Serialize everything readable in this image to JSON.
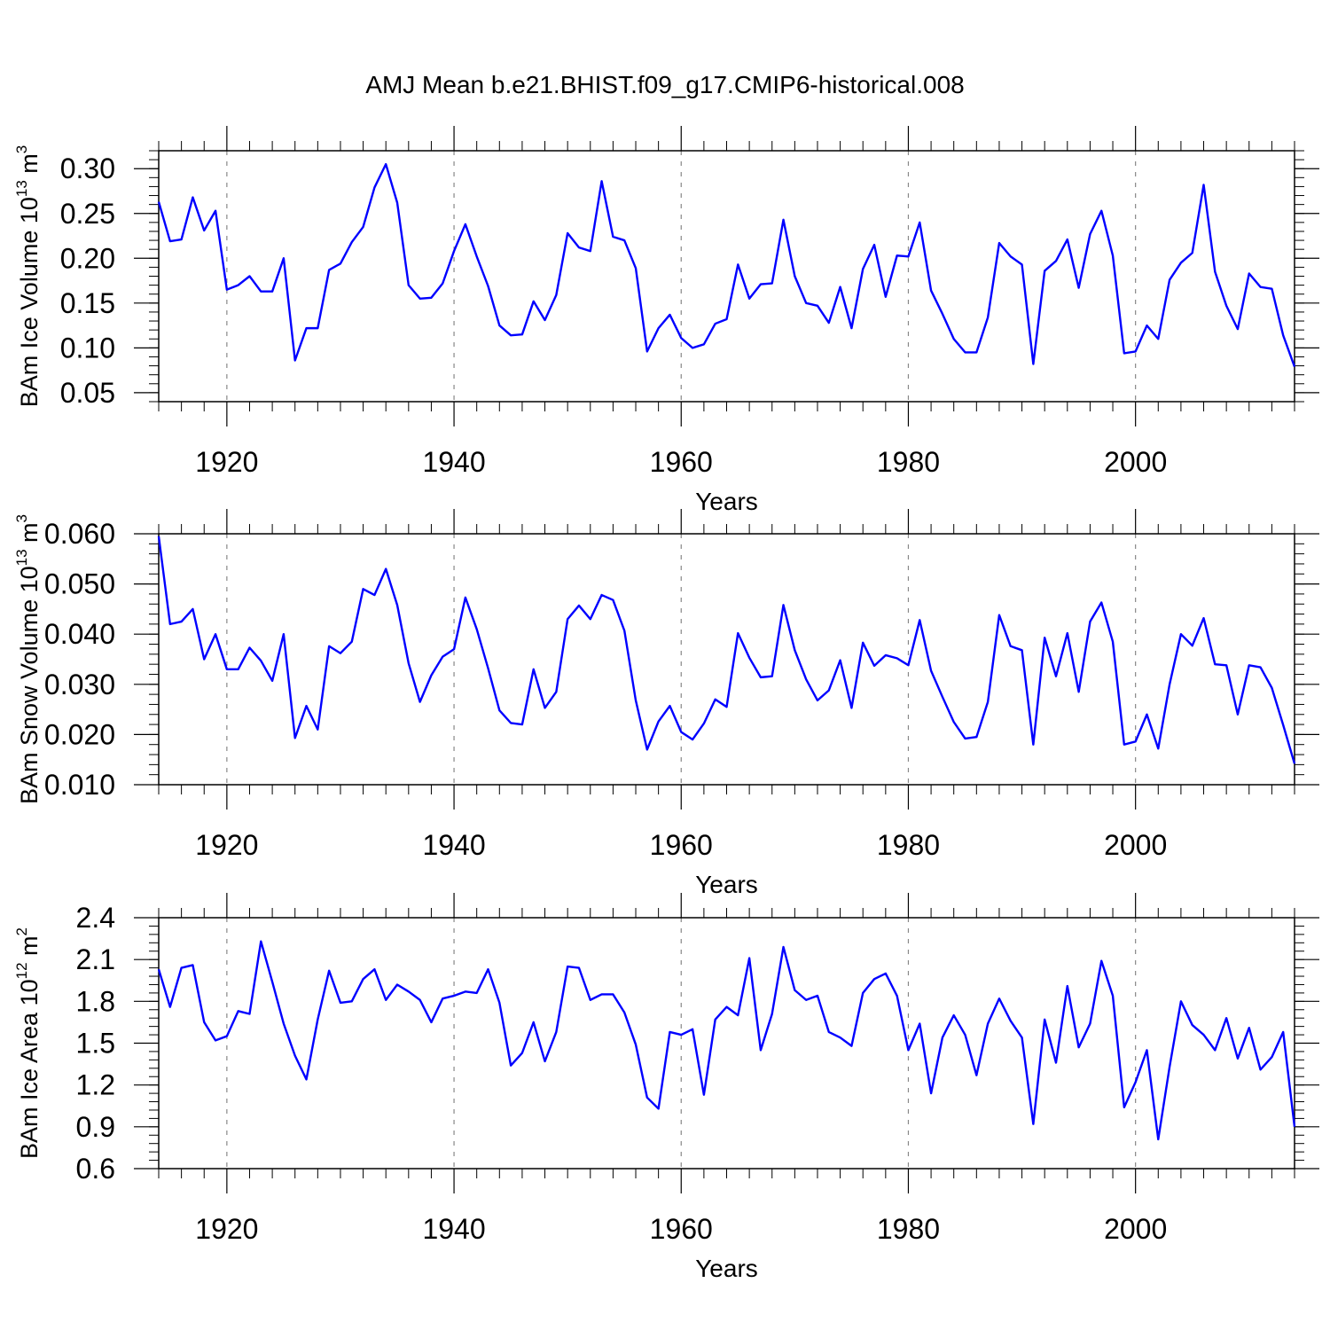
{
  "title": "AMJ Mean b.e21.BHIST.f09_g17.CMIP6-historical.008",
  "colors": {
    "line": "#0000ff",
    "axis": "#000000",
    "grid": "#888888"
  },
  "chart_data": [
    {
      "type": "line",
      "ylabel_main": "BAm Ice Volume 10",
      "ylabel_exp": "13",
      "ylabel_unit": "m",
      "ylabel_unit_exp": "3",
      "xlabel": "Years",
      "xlim": [
        1914,
        2014
      ],
      "ylim": [
        0.04,
        0.32
      ],
      "yticks": [
        "0.05",
        "0.10",
        "0.15",
        "0.20",
        "0.25",
        "0.30"
      ],
      "xticks": [
        "1920",
        "1940",
        "1960",
        "1980",
        "2000"
      ],
      "x_start": 1914,
      "values": [
        0.263,
        0.219,
        0.221,
        0.268,
        0.231,
        0.253,
        0.165,
        0.17,
        0.18,
        0.163,
        0.163,
        0.2,
        0.086,
        0.122,
        0.122,
        0.187,
        0.194,
        0.218,
        0.235,
        0.279,
        0.305,
        0.262,
        0.17,
        0.155,
        0.156,
        0.172,
        0.208,
        0.238,
        0.202,
        0.169,
        0.125,
        0.114,
        0.115,
        0.152,
        0.131,
        0.159,
        0.228,
        0.212,
        0.208,
        0.286,
        0.224,
        0.22,
        0.189,
        0.096,
        0.122,
        0.137,
        0.111,
        0.1,
        0.104,
        0.127,
        0.132,
        0.193,
        0.155,
        0.171,
        0.172,
        0.243,
        0.18,
        0.15,
        0.147,
        0.128,
        0.168,
        0.122,
        0.188,
        0.215,
        0.157,
        0.203,
        0.202,
        0.24,
        0.164,
        0.138,
        0.11,
        0.095,
        0.095,
        0.134,
        0.217,
        0.202,
        0.193,
        0.082,
        0.186,
        0.197,
        0.221,
        0.167,
        0.227,
        0.253,
        0.203,
        0.094,
        0.096,
        0.125,
        0.11,
        0.176,
        0.195,
        0.206,
        0.282,
        0.185,
        0.147,
        0.121,
        0.183,
        0.168,
        0.166,
        0.114,
        0.079
      ]
    },
    {
      "type": "line",
      "ylabel_main": "BAm Snow Volume 10",
      "ylabel_exp": "13",
      "ylabel_unit": "m",
      "ylabel_unit_exp": "3",
      "xlabel": "Years",
      "xlim": [
        1914,
        2014
      ],
      "ylim": [
        0.01,
        0.06
      ],
      "yticks": [
        "0.010",
        "0.020",
        "0.030",
        "0.040",
        "0.050",
        "0.060"
      ],
      "xticks": [
        "1920",
        "1940",
        "1960",
        "1980",
        "2000"
      ],
      "x_start": 1914,
      "values": [
        0.0595,
        0.042,
        0.0425,
        0.045,
        0.035,
        0.04,
        0.033,
        0.033,
        0.0373,
        0.0347,
        0.0307,
        0.04,
        0.0193,
        0.0257,
        0.021,
        0.0376,
        0.0362,
        0.0385,
        0.049,
        0.0478,
        0.053,
        0.0458,
        0.0342,
        0.0265,
        0.0318,
        0.0355,
        0.037,
        0.0473,
        0.041,
        0.0332,
        0.0248,
        0.0223,
        0.022,
        0.033,
        0.0253,
        0.0285,
        0.043,
        0.0457,
        0.043,
        0.0478,
        0.0468,
        0.0407,
        0.0268,
        0.017,
        0.0226,
        0.0257,
        0.0205,
        0.019,
        0.0222,
        0.027,
        0.0255,
        0.0402,
        0.0353,
        0.0314,
        0.0316,
        0.0458,
        0.0368,
        0.031,
        0.0268,
        0.0288,
        0.0348,
        0.0253,
        0.0383,
        0.0337,
        0.0358,
        0.0352,
        0.0338,
        0.0428,
        0.0327,
        0.0275,
        0.0225,
        0.0192,
        0.0195,
        0.0265,
        0.0438,
        0.0376,
        0.0368,
        0.018,
        0.0393,
        0.0316,
        0.0402,
        0.0285,
        0.0425,
        0.0463,
        0.0385,
        0.018,
        0.0186,
        0.024,
        0.0172,
        0.03,
        0.04,
        0.0377,
        0.0432,
        0.034,
        0.0338,
        0.024,
        0.0338,
        0.0334,
        0.0293,
        0.0219,
        0.0142
      ]
    },
    {
      "type": "line",
      "ylabel_main": "BAm Ice Area 10",
      "ylabel_exp": "12",
      "ylabel_unit": "m",
      "ylabel_unit_exp": "2",
      "xlabel": "Years",
      "xlim": [
        1914,
        2014
      ],
      "ylim": [
        0.6,
        2.4
      ],
      "yticks": [
        "0.6",
        "0.9",
        "1.2",
        "1.5",
        "1.8",
        "2.1",
        "2.4"
      ],
      "xticks": [
        "1920",
        "1940",
        "1960",
        "1980",
        "2000"
      ],
      "x_start": 1914,
      "values": [
        2.03,
        1.76,
        2.04,
        2.06,
        1.65,
        1.52,
        1.55,
        1.73,
        1.71,
        2.23,
        1.94,
        1.64,
        1.41,
        1.24,
        1.67,
        2.02,
        1.79,
        1.8,
        1.96,
        2.03,
        1.81,
        1.92,
        1.87,
        1.81,
        1.65,
        1.82,
        1.84,
        1.87,
        1.86,
        2.03,
        1.79,
        1.34,
        1.43,
        1.65,
        1.37,
        1.58,
        2.05,
        2.04,
        1.81,
        1.85,
        1.85,
        1.72,
        1.49,
        1.11,
        1.03,
        1.58,
        1.56,
        1.6,
        1.13,
        1.67,
        1.76,
        1.7,
        2.11,
        1.45,
        1.71,
        2.19,
        1.88,
        1.81,
        1.84,
        1.58,
        1.54,
        1.48,
        1.86,
        1.96,
        2.0,
        1.84,
        1.45,
        1.64,
        1.14,
        1.54,
        1.7,
        1.56,
        1.27,
        1.64,
        1.82,
        1.66,
        1.54,
        0.92,
        1.67,
        1.36,
        1.91,
        1.47,
        1.64,
        2.09,
        1.84,
        1.04,
        1.22,
        1.45,
        0.81,
        1.33,
        1.8,
        1.63,
        1.56,
        1.45,
        1.68,
        1.39,
        1.61,
        1.31,
        1.4,
        1.58,
        0.9
      ]
    }
  ]
}
